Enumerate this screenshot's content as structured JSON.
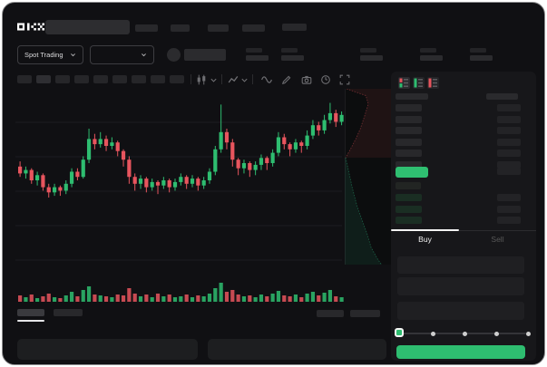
{
  "brand": {
    "logo": "OKX"
  },
  "ticker_bar": {
    "market_selector": "Spot Trading"
  },
  "trade_panel": {
    "buy_tab_label": "Buy",
    "sell_tab_label": "Sell",
    "order_book": {
      "ask_rows": 6,
      "bid_rows": 4,
      "view_modes": [
        "combined",
        "bids",
        "asks"
      ],
      "selected_view": "combined"
    },
    "slider": {
      "steps": 5,
      "selected_step": 1
    }
  },
  "colors": {
    "up": "#2ebd70",
    "down": "#e8555e",
    "buy_button": "#2ebd70",
    "last_price_bar": "#2fbf71",
    "window_bg": "#101013",
    "panel_bg": "#17171a"
  },
  "chart_data": {
    "type": "candlestick",
    "title": "",
    "xlabel": "",
    "ylabel": "",
    "axes": {
      "x_labels_visible": false,
      "y_labels_visible": false,
      "grid": "horizontal-faint"
    },
    "ohlc_order": [
      "open",
      "high",
      "low",
      "close"
    ],
    "price_units": "relative 0-100 (no axis labels visible)",
    "candles": [
      [
        58,
        61,
        52,
        54
      ],
      [
        54,
        58,
        51,
        56
      ],
      [
        56,
        57,
        48,
        50
      ],
      [
        50,
        55,
        47,
        53
      ],
      [
        53,
        54,
        44,
        46
      ],
      [
        46,
        48,
        40,
        43
      ],
      [
        43,
        48,
        41,
        46
      ],
      [
        46,
        47,
        41,
        44
      ],
      [
        44,
        50,
        42,
        48
      ],
      [
        48,
        57,
        46,
        55
      ],
      [
        55,
        57,
        50,
        52
      ],
      [
        52,
        64,
        51,
        62
      ],
      [
        62,
        80,
        60,
        74
      ],
      [
        74,
        77,
        68,
        71
      ],
      [
        71,
        78,
        69,
        74
      ],
      [
        74,
        76,
        67,
        70
      ],
      [
        70,
        75,
        68,
        72
      ],
      [
        72,
        73,
        64,
        67
      ],
      [
        67,
        68,
        58,
        62
      ],
      [
        62,
        64,
        48,
        52
      ],
      [
        52,
        54,
        44,
        48
      ],
      [
        48,
        53,
        45,
        51
      ],
      [
        51,
        52,
        43,
        46
      ],
      [
        46,
        51,
        44,
        49
      ],
      [
        49,
        50,
        42,
        47
      ],
      [
        47,
        52,
        45,
        50
      ],
      [
        50,
        51,
        43,
        46
      ],
      [
        46,
        51,
        44,
        49
      ],
      [
        49,
        54,
        47,
        52
      ],
      [
        52,
        53,
        45,
        48
      ],
      [
        48,
        53,
        46,
        51
      ],
      [
        51,
        52,
        44,
        47
      ],
      [
        47,
        52,
        45,
        50
      ],
      [
        50,
        57,
        48,
        55
      ],
      [
        55,
        70,
        53,
        68
      ],
      [
        68,
        94,
        66,
        78
      ],
      [
        78,
        80,
        68,
        72
      ],
      [
        72,
        74,
        58,
        62
      ],
      [
        62,
        63,
        53,
        57
      ],
      [
        57,
        62,
        54,
        60
      ],
      [
        60,
        61,
        52,
        56
      ],
      [
        56,
        61,
        53,
        59
      ],
      [
        59,
        65,
        56,
        63
      ],
      [
        63,
        64,
        56,
        60
      ],
      [
        60,
        68,
        58,
        66
      ],
      [
        66,
        78,
        64,
        75
      ],
      [
        75,
        77,
        68,
        71
      ],
      [
        71,
        72,
        64,
        68
      ],
      [
        68,
        74,
        66,
        72
      ],
      [
        72,
        73,
        66,
        70
      ],
      [
        70,
        79,
        68,
        76
      ],
      [
        76,
        85,
        74,
        82
      ],
      [
        82,
        84,
        76,
        79
      ],
      [
        79,
        88,
        77,
        85
      ],
      [
        85,
        95,
        83,
        89
      ],
      [
        89,
        91,
        81,
        84
      ],
      [
        84,
        90,
        82,
        88
      ]
    ],
    "volume": [
      7,
      5,
      8,
      4,
      6,
      9,
      5,
      4,
      7,
      11,
      6,
      13,
      17,
      8,
      7,
      6,
      5,
      8,
      7,
      15,
      9,
      6,
      8,
      5,
      9,
      6,
      8,
      5,
      6,
      8,
      5,
      7,
      6,
      9,
      15,
      21,
      11,
      13,
      8,
      6,
      7,
      5,
      8,
      6,
      9,
      12,
      7,
      6,
      8,
      5,
      9,
      11,
      7,
      10,
      13,
      6,
      5
    ],
    "volume_color_rule": "green when close>=open else red",
    "depth_profile": {
      "orientation": "vertical, asks above mid (red, anchored right), bids below mid (green, anchored left)",
      "asks_boundary": [
        [
          0.04,
          0
        ],
        [
          0.45,
          0.1
        ],
        [
          0.5,
          0.22
        ],
        [
          0.42,
          0.4
        ],
        [
          0.33,
          0.58
        ],
        [
          0.24,
          0.72
        ],
        [
          0.12,
          0.88
        ],
        [
          0.02,
          1
        ]
      ],
      "bids_boundary": [
        [
          0.02,
          0
        ],
        [
          0.08,
          0.12
        ],
        [
          0.16,
          0.28
        ],
        [
          0.26,
          0.45
        ],
        [
          0.38,
          0.6
        ],
        [
          0.48,
          0.72
        ],
        [
          0.56,
          0.84
        ],
        [
          0.7,
          0.95
        ],
        [
          0.78,
          1
        ]
      ]
    }
  }
}
